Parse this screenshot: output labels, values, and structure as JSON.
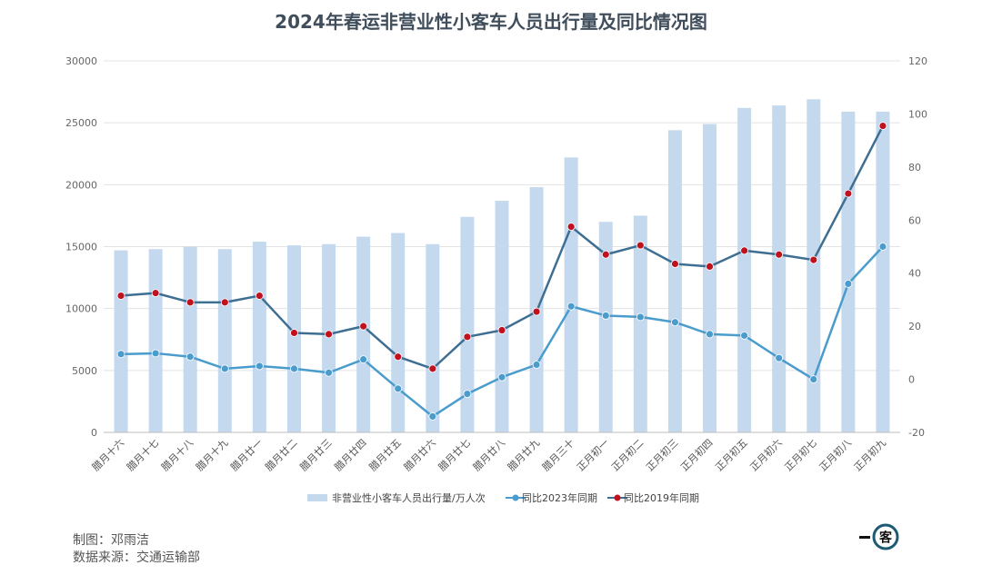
{
  "chart_data": {
    "type": "bar+line",
    "title": "2024年春运非营业性小客车人员出行量及同比情况图",
    "categories": [
      "腊月十六",
      "腊月十七",
      "腊月十八",
      "腊月十九",
      "腊月廿一",
      "腊月廿二",
      "腊月廿三",
      "腊月廿四",
      "腊月廿五",
      "腊月廿六",
      "腊月廿七",
      "腊月廿八",
      "腊月廿九",
      "腊月三十",
      "正月初一",
      "正月初二",
      "正月初三",
      "正月初四",
      "正月初五",
      "正月初六",
      "正月初七",
      "正月初八",
      "正月初九"
    ],
    "left_axis": {
      "ylim": [
        0,
        30000
      ],
      "ticks": [
        "0",
        "5000",
        "10000",
        "15000",
        "20000",
        "25000",
        "30000"
      ]
    },
    "right_axis": {
      "ylim": [
        -20,
        120
      ],
      "ticks": [
        "-20",
        "0",
        "20",
        "40",
        "60",
        "80",
        "100",
        "120"
      ]
    },
    "series": [
      {
        "name": "非营业性小客车人员出行量/万人次",
        "type": "bar",
        "axis": "left",
        "color": "#c5d9ee",
        "values": [
          14700,
          14800,
          15000,
          14800,
          15400,
          15100,
          15200,
          15800,
          16100,
          15200,
          17400,
          18700,
          19800,
          22200,
          17000,
          17500,
          24400,
          24900,
          26200,
          26400,
          26900,
          25900,
          25900
        ]
      },
      {
        "name": "同比2023年同期",
        "type": "line",
        "axis": "right",
        "color": "#4a9ccd",
        "values": [
          9.5,
          9.8,
          8.5,
          4,
          5,
          4,
          2.5,
          7.5,
          -3.5,
          -14,
          -5.5,
          0.8,
          5.5,
          27.5,
          24,
          23.5,
          21.5,
          17,
          16.5,
          8,
          0,
          36,
          50
        ]
      },
      {
        "name": "同比2019年同期",
        "type": "line",
        "axis": "right",
        "color": "#3e6f93",
        "marker_color": "#c0111f",
        "values": [
          31.5,
          32.5,
          29,
          29,
          31.5,
          17.5,
          17,
          20,
          8.5,
          4,
          16,
          18.5,
          25.5,
          57.5,
          47,
          50.5,
          43.5,
          42.5,
          48.5,
          47,
          45,
          70,
          95.5
        ]
      }
    ],
    "legend_position": "bottom",
    "grid": true
  },
  "credits": {
    "author": "制图：邓雨洁",
    "source": "数据来源：交通运输部"
  },
  "logo": {
    "text": "客",
    "icon": "logo-icon"
  }
}
